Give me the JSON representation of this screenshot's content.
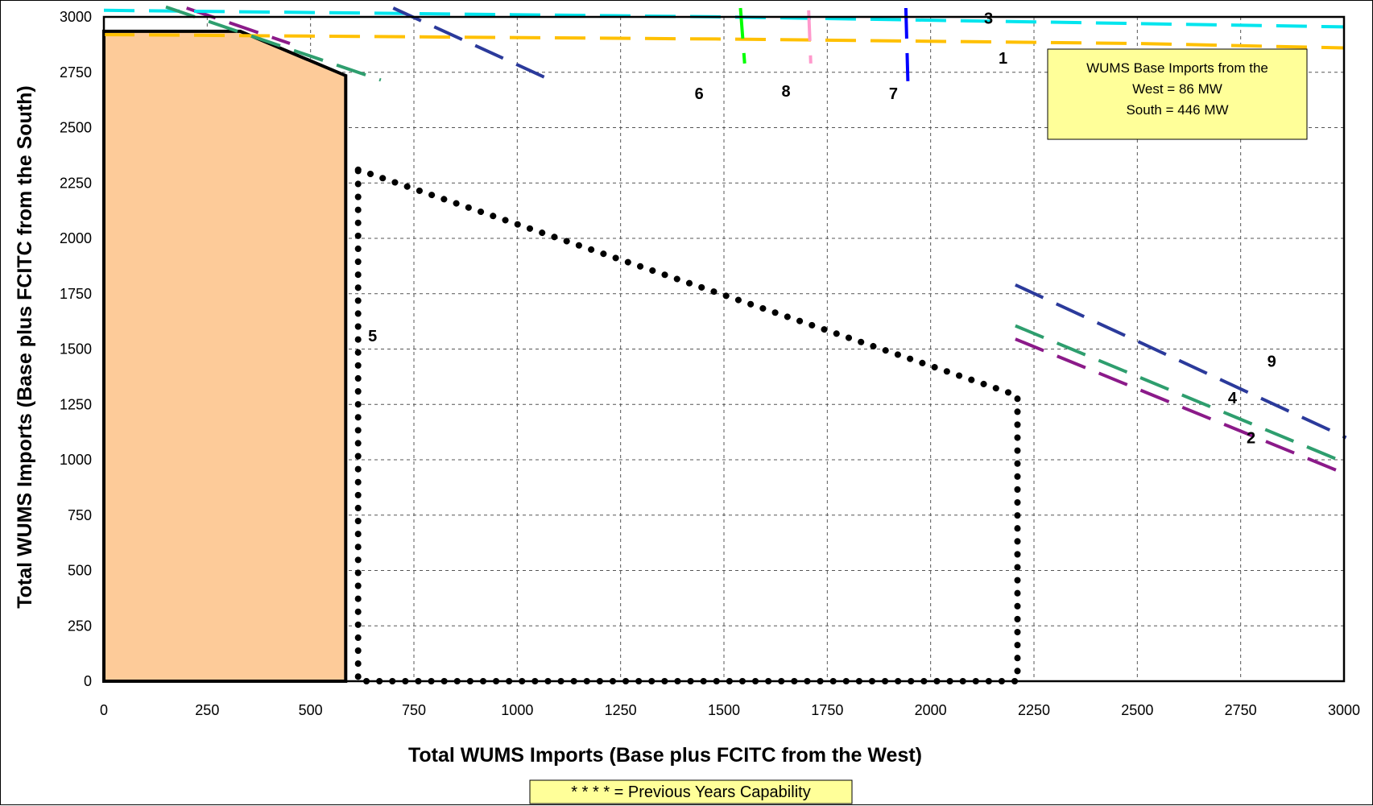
{
  "chart_data": {
    "type": "line",
    "title": "",
    "xlabel": "Total WUMS Imports (Base plus FCITC from the West)",
    "ylabel": "Total WUMS Imports (Base plus FCITC from the South)",
    "xlim": [
      0,
      3000
    ],
    "ylim": [
      0,
      3000
    ],
    "xticks": [
      0,
      250,
      500,
      750,
      1000,
      1250,
      1500,
      1750,
      2000,
      2250,
      2500,
      2750,
      3000
    ],
    "yticks": [
      0,
      250,
      500,
      750,
      1000,
      1250,
      1500,
      1750,
      2000,
      2250,
      2500,
      2750,
      3000
    ],
    "grid": true,
    "annotation": {
      "lines": [
        "WUMS Base Imports from the",
        "West = 86 MW",
        "South = 446 MW"
      ],
      "background": "#ffff99"
    },
    "legend_note": "* * * * = Previous Years Capability",
    "feasible_region": {
      "fill": "#fdcb99",
      "stroke": "#000000",
      "points": [
        [
          0,
          0
        ],
        [
          0,
          2935
        ],
        [
          330,
          2935
        ],
        [
          585,
          2735
        ],
        [
          585,
          0
        ]
      ]
    },
    "previous_capability": {
      "color": "#000000",
      "points": [
        [
          615,
          2310
        ],
        [
          2210,
          1290
        ],
        [
          2210,
          0
        ],
        [
          615,
          0
        ]
      ]
    },
    "series": [
      {
        "label": "1",
        "color": "#ffc000",
        "style": "dash",
        "points": [
          [
            0,
            2920
          ],
          [
            1500,
            2900
          ],
          [
            2500,
            2880
          ],
          [
            3000,
            2860
          ]
        ],
        "label_at": [
          2175,
          2790
        ]
      },
      {
        "label": "2",
        "color": "#8b1a89",
        "style": "dash",
        "points": [
          [
            200,
            3040
          ],
          [
            450,
            2880
          ]
        ],
        "points2": [
          [
            2205,
            1545
          ],
          [
            3005,
            935
          ]
        ],
        "label_at": [
          2775,
          1075
        ]
      },
      {
        "label": "3",
        "color": "#00e5ee",
        "style": "dash",
        "points": [
          [
            0,
            3030
          ],
          [
            1500,
            3000
          ],
          [
            3000,
            2955
          ]
        ],
        "label_at": [
          2140,
          2970
        ]
      },
      {
        "label": "4",
        "color": "#2e9e6e",
        "style": "dash",
        "points": [
          [
            150,
            3045
          ],
          [
            670,
            2715
          ]
        ],
        "points2": [
          [
            2205,
            1605
          ],
          [
            3005,
            985
          ]
        ],
        "label_at": [
          2730,
          1255
        ]
      },
      {
        "label": "5",
        "color": "#000000",
        "style": "none",
        "points": [],
        "label_at": [
          650,
          1535
        ]
      },
      {
        "label": "6",
        "color": "#2b3a9b",
        "style": "dash",
        "points": [
          [
            700,
            3040
          ],
          [
            1075,
            2720
          ]
        ],
        "points2": [
          [
            2205,
            1790
          ],
          [
            3005,
            1100
          ]
        ],
        "label_at": [
          1440,
          2630
        ]
      },
      {
        "label": "7",
        "color": "#0000ff",
        "style": "dash",
        "points": [
          [
            1940,
            3040
          ],
          [
            1945,
            2710
          ]
        ],
        "label_at": [
          1910,
          2630
        ]
      },
      {
        "label": "8",
        "color": "#ff99cc",
        "style": "dash",
        "points": [
          [
            1705,
            3030
          ],
          [
            1710,
            2790
          ]
        ],
        "label_at": [
          1650,
          2640
        ]
      },
      {
        "label": "9",
        "color": "#2b3a9b",
        "style": "dash",
        "points": [],
        "label_at": [
          2825,
          1420
        ]
      },
      {
        "label": "",
        "color": "#00ff00",
        "style": "dash",
        "points": [
          [
            1540,
            3040
          ],
          [
            1550,
            2790
          ]
        ],
        "label_at": null
      }
    ]
  }
}
